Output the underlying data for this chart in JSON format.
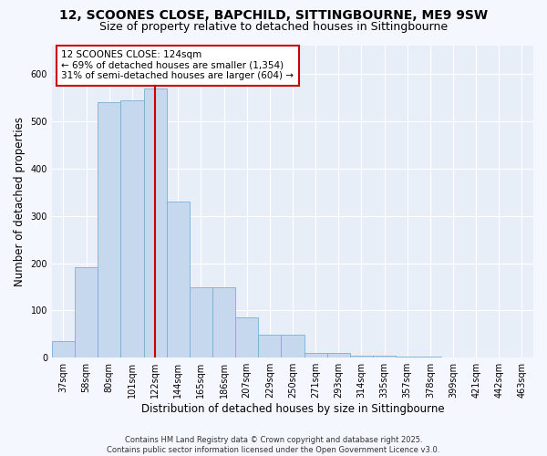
{
  "title1": "12, SCOONES CLOSE, BAPCHILD, SITTINGBOURNE, ME9 9SW",
  "title2": "Size of property relative to detached houses in Sittingbourne",
  "xlabel": "Distribution of detached houses by size in Sittingbourne",
  "ylabel": "Number of detached properties",
  "categories": [
    "37sqm",
    "58sqm",
    "80sqm",
    "101sqm",
    "122sqm",
    "144sqm",
    "165sqm",
    "186sqm",
    "207sqm",
    "229sqm",
    "250sqm",
    "271sqm",
    "293sqm",
    "314sqm",
    "335sqm",
    "357sqm",
    "378sqm",
    "399sqm",
    "421sqm",
    "442sqm",
    "463sqm"
  ],
  "values": [
    35,
    192,
    540,
    545,
    570,
    330,
    148,
    148,
    85,
    48,
    48,
    10,
    10,
    5,
    5,
    2,
    2,
    0,
    0,
    0,
    0
  ],
  "bar_color": "#c5d8ee",
  "bar_edge_color": "#7aafd4",
  "vline_x_index": 4,
  "vline_color": "#cc0000",
  "annotation_text": "12 SCOONES CLOSE: 124sqm\n← 69% of detached houses are smaller (1,354)\n31% of semi-detached houses are larger (604) →",
  "annotation_box_color": "#cc0000",
  "ylim": [
    0,
    660
  ],
  "yticks": [
    0,
    100,
    200,
    300,
    400,
    500,
    600
  ],
  "footer": "Contains HM Land Registry data © Crown copyright and database right 2025.\nContains public sector information licensed under the Open Government Licence v3.0.",
  "plot_bg_color": "#e8eef8",
  "fig_bg_color": "#f5f7ff",
  "grid_color": "#ffffff",
  "title_fontsize": 10,
  "subtitle_fontsize": 9,
  "tick_fontsize": 7,
  "xlabel_fontsize": 8.5,
  "ylabel_fontsize": 8.5,
  "annotation_fontsize": 7.5,
  "footer_fontsize": 6
}
